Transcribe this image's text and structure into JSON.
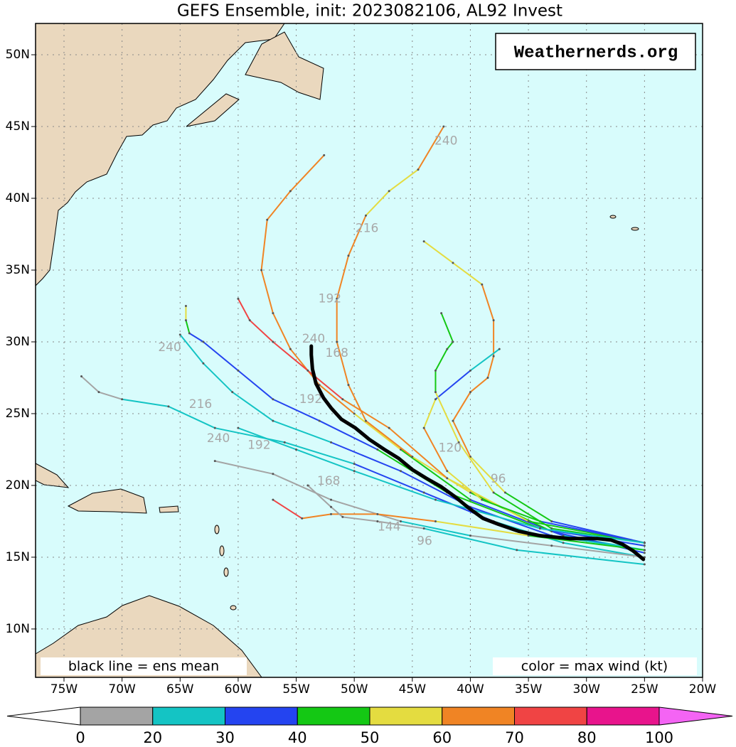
{
  "map": {
    "title": "GEFS Ensemble, init: 2023082106, AL92 Invest",
    "watermark": "Weathernerds.org",
    "legend_left": "black line = ens mean",
    "legend_right": "color = max wind (kt)",
    "lon_range": [
      -77.45,
      -20
    ],
    "lat_range": [
      6.63,
      52.18
    ],
    "lon_ticks": [
      {
        "value": -75,
        "label": "75W"
      },
      {
        "value": -70,
        "label": "70W"
      },
      {
        "value": -65,
        "label": "65W"
      },
      {
        "value": -60,
        "label": "60W"
      },
      {
        "value": -55,
        "label": "55W"
      },
      {
        "value": -50,
        "label": "50W"
      },
      {
        "value": -45,
        "label": "45W"
      },
      {
        "value": -40,
        "label": "40W"
      },
      {
        "value": -35,
        "label": "35W"
      },
      {
        "value": -30,
        "label": "30W"
      },
      {
        "value": -25,
        "label": "25W"
      },
      {
        "value": -20,
        "label": "20W"
      }
    ],
    "lat_ticks": [
      {
        "value": 10,
        "label": "10N"
      },
      {
        "value": 15,
        "label": "15N"
      },
      {
        "value": 20,
        "label": "20N"
      },
      {
        "value": 25,
        "label": "25N"
      },
      {
        "value": 30,
        "label": "30N"
      },
      {
        "value": 35,
        "label": "35N"
      },
      {
        "value": 40,
        "label": "40N"
      },
      {
        "value": 45,
        "label": "45N"
      },
      {
        "value": 50,
        "label": "50N"
      }
    ],
    "grid": true,
    "ocean_color": "#d8fcfc",
    "land_color": "#ead8be",
    "colorbar": {
      "bounds": [
        0,
        20,
        30,
        40,
        50,
        60,
        70,
        80,
        100
      ],
      "colors": [
        "#a4a4a4",
        "#14c4c4",
        "#2444f0",
        "#14c814",
        "#e4dc40",
        "#f08424",
        "#f04444",
        "#e8148c"
      ],
      "under_color": "#ffffff",
      "over_color": "#f464f4"
    },
    "ensemble_tracks": [
      {
        "lon": [
          -25,
          -32,
          -40,
          -46,
          -50,
          -53,
          -55.5,
          -57,
          -58,
          -57.5,
          -55.5,
          -52.6
        ],
        "lat": [
          15.5,
          16.5,
          19,
          22.5,
          25,
          27,
          29.5,
          32,
          35,
          38.5,
          40.5,
          43
        ],
        "wind": [
          20,
          30,
          40,
          50,
          60,
          60,
          60,
          60,
          60,
          60,
          60,
          60
        ]
      },
      {
        "lon": [
          -25,
          -33,
          -40,
          -45,
          -49,
          -50.5,
          -51.5,
          -51.5,
          -50.5,
          -49,
          -47,
          -44.5,
          -42.3
        ],
        "lat": [
          15.3,
          16.8,
          19.5,
          22,
          24.5,
          27,
          30,
          33,
          36,
          38.8,
          40.5,
          42,
          45
        ],
        "wind": [
          30,
          40,
          50,
          60,
          60,
          60,
          60,
          60,
          60,
          50,
          50,
          60,
          60
        ]
      },
      {
        "lon": [
          -25,
          -33,
          -37,
          -40,
          -41.5,
          -40,
          -38.5,
          -38,
          -38,
          -39,
          -41.5,
          -44
        ],
        "lat": [
          16,
          17.5,
          19.5,
          22,
          24.5,
          26.5,
          27.5,
          29,
          31.5,
          34,
          35.5,
          37
        ],
        "wind": [
          30,
          40,
          50,
          60,
          60,
          60,
          60,
          60,
          60,
          50,
          50,
          50
        ]
      },
      {
        "lon": [
          -25,
          -32,
          -38,
          -44,
          -50,
          -56,
          -62,
          -66,
          -70,
          -72,
          -73.5
        ],
        "lat": [
          15,
          16,
          17.5,
          19.5,
          21.5,
          23,
          24,
          25.5,
          26,
          26.5,
          27.6
        ],
        "wind": [
          20,
          20,
          30,
          30,
          20,
          20,
          20,
          20,
          10,
          10,
          10
        ]
      },
      {
        "lon": [
          -25,
          -33,
          -40,
          -46,
          -52,
          -57,
          -60.5,
          -63,
          -65
        ],
        "lat": [
          15.5,
          16.5,
          18.5,
          21,
          23,
          24.5,
          26.5,
          28.5,
          30.5
        ],
        "wind": [
          20,
          30,
          30,
          30,
          20,
          20,
          20,
          20,
          20
        ]
      },
      {
        "lon": [
          -25,
          -34,
          -42,
          -48,
          -53,
          -57,
          -60,
          -63,
          -64.2,
          -64.5,
          -64.5
        ],
        "lat": [
          15.8,
          17,
          19.5,
          22.5,
          24.5,
          26,
          28,
          30,
          30.6,
          31.5,
          32.5
        ],
        "wind": [
          30,
          40,
          40,
          30,
          30,
          30,
          30,
          30,
          40,
          50,
          50
        ]
      },
      {
        "lon": [
          -25,
          -35,
          -42,
          -47,
          -51,
          -54,
          -57,
          -59,
          -60
        ],
        "lat": [
          16,
          17.5,
          20.5,
          24,
          26,
          28,
          30,
          31.5,
          33
        ],
        "wind": [
          40,
          50,
          60,
          60,
          70,
          70,
          70,
          70,
          70
        ]
      },
      {
        "lon": [
          -25,
          -33,
          -40,
          -46,
          -52,
          -57,
          -62
        ],
        "lat": [
          15,
          15.8,
          16.5,
          17.5,
          19,
          20.8,
          21.7
        ],
        "wind": [
          10,
          10,
          20,
          10,
          10,
          10,
          10
        ]
      },
      {
        "lon": [
          -25,
          -35,
          -43,
          -48,
          -52,
          -54.5,
          -57
        ],
        "lat": [
          15.5,
          16.5,
          17.5,
          18,
          18,
          17.7,
          19
        ],
        "wind": [
          40,
          50,
          60,
          60,
          60,
          70,
          60
        ]
      },
      {
        "lon": [
          -25,
          -36,
          -44,
          -48,
          -51,
          -52,
          -54
        ],
        "lat": [
          14.5,
          15.5,
          17,
          17.5,
          17.8,
          18.5,
          20
        ],
        "wind": [
          20,
          20,
          10,
          10,
          10,
          10,
          10
        ]
      },
      {
        "lon": [
          -25,
          -34,
          -39,
          -42,
          -44,
          -43,
          -40,
          -37.5
        ],
        "lat": [
          16,
          17.5,
          19,
          21,
          24,
          26,
          28,
          29.5
        ],
        "wind": [
          30,
          40,
          50,
          60,
          50,
          30,
          20,
          20
        ]
      },
      {
        "lon": [
          -25,
          -33,
          -38,
          -41,
          -43,
          -43,
          -42,
          -41.5,
          -42.5
        ],
        "lat": [
          16,
          17,
          19.5,
          23,
          26.5,
          28,
          29.5,
          30,
          32
        ],
        "wind": [
          40,
          40,
          50,
          50,
          40,
          40,
          40,
          40,
          40
        ]
      },
      {
        "lon": [
          -25,
          -34,
          -43,
          -50,
          -55,
          -60
        ],
        "lat": [
          16,
          17,
          19,
          21,
          22.5,
          24
        ],
        "wind": [
          20,
          20,
          20,
          20,
          20,
          20
        ]
      }
    ],
    "mean_track": {
      "lon": [
        -25.1,
        -26.0,
        -26.9,
        -27.9,
        -29.1,
        -31.5,
        -34.0,
        -35.8,
        -37.6,
        -38.9,
        -40.1,
        -41.3,
        -42.5,
        -43.8,
        -45.0,
        -46.2,
        -47.4,
        -48.7,
        -49.9,
        -51.1,
        -52.0,
        -52.65,
        -53.3,
        -53.6,
        -53.7,
        -53.7
      ],
      "lat": [
        14.85,
        15.45,
        15.9,
        16.2,
        16.3,
        16.3,
        16.5,
        16.8,
        17.3,
        17.7,
        18.4,
        19.2,
        19.9,
        20.5,
        21.1,
        21.9,
        22.5,
        23.2,
        24.0,
        24.6,
        25.4,
        26.1,
        27.1,
        28.1,
        29.1,
        29.7
      ]
    },
    "hour_labels": [
      {
        "text": "240",
        "lon": -65.9,
        "lat": 29.6
      },
      {
        "text": "216",
        "lon": -63.24,
        "lat": 25.65
      },
      {
        "text": "240",
        "lon": -61.7,
        "lat": 23.27
      },
      {
        "text": "192",
        "lon": -58.2,
        "lat": 22.8
      },
      {
        "text": "192",
        "lon": -52.1,
        "lat": 33.0
      },
      {
        "text": "216",
        "lon": -48.9,
        "lat": 37.9
      },
      {
        "text": "240",
        "lon": -42.1,
        "lat": 43.98
      },
      {
        "text": "168",
        "lon": -51.5,
        "lat": 29.2
      },
      {
        "text": "240",
        "lon": -53.5,
        "lat": 30.2
      },
      {
        "text": "192",
        "lon": -53.75,
        "lat": 26.0
      },
      {
        "text": "168",
        "lon": -52.2,
        "lat": 20.3
      },
      {
        "text": "144",
        "lon": -47.0,
        "lat": 17.1
      },
      {
        "text": "96",
        "lon": -43.95,
        "lat": 16.1
      },
      {
        "text": "96",
        "lon": -37.6,
        "lat": 20.45
      },
      {
        "text": "120",
        "lon": -41.75,
        "lat": 22.6
      }
    ]
  }
}
